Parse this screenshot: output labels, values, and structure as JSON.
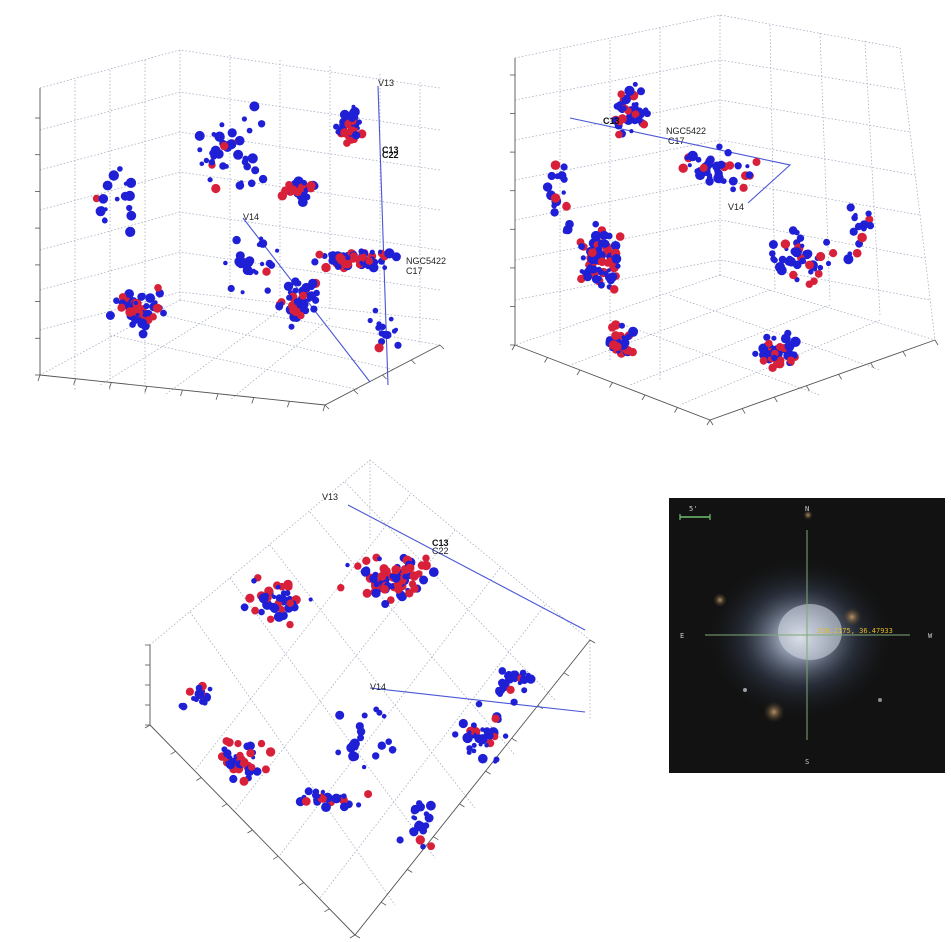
{
  "chart_data": [
    {
      "type": "scatter",
      "panel": "3d-view-1",
      "series": [
        {
          "color": "#1f1fd6"
        },
        {
          "color": "#d8203a"
        }
      ],
      "labels": [
        "V13",
        "C13",
        "C22",
        "V14",
        "NGC5422",
        "C17"
      ],
      "grid": true
    },
    {
      "type": "scatter",
      "panel": "3d-view-2",
      "series": [
        {
          "color": "#1f1fd6"
        },
        {
          "color": "#d8203a"
        }
      ],
      "labels": [
        "C13",
        "NGC5422",
        "C17",
        "V14"
      ],
      "grid": true
    },
    {
      "type": "scatter",
      "panel": "3d-view-3",
      "series": [
        {
          "color": "#1f1fd6"
        },
        {
          "color": "#d8203a"
        }
      ],
      "labels": [
        "V13",
        "C13",
        "C22",
        "V14"
      ],
      "grid": true
    }
  ],
  "sky_image": {
    "scale": "5'",
    "north": "N",
    "south": "S",
    "east": "E",
    "west": "W",
    "coords": "236.2175, 36.47933"
  }
}
